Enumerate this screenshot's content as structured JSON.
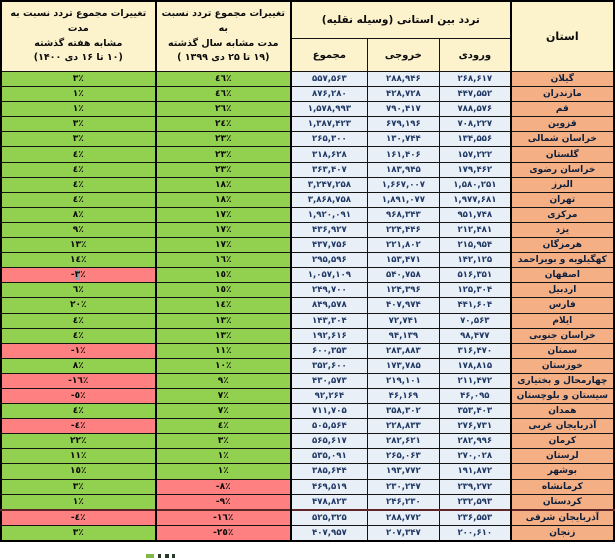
{
  "table": {
    "headers": {
      "province": "استان",
      "traffic_group": "تردد بین استانی (وسیله نقلیه)",
      "incoming": "ورودی",
      "outgoing": "خروجی",
      "total": "مجموع",
      "year_change": "تغییرات مجموع تردد نسبت به\nمدت مشابه سال گذشته\n(۱۹ تا ۲۵ دی ۱۳۹۹ )",
      "week_change": "تغییرات مجموع تردد نسبت به مدت\nمشابه هفته گذشته\n(۱۰ تا ۱۶ دی ۱۴۰۰)"
    },
    "colors": {
      "header_bg": "#FCF2CC",
      "province_bg": "#F4B084",
      "value_bg": "#E9EFF7",
      "positive_bg": "#92D050",
      "negative_bg": "#FF8080",
      "heavy_row_border": "#5E2626"
    },
    "rows": [
      {
        "province": "گیلان",
        "incoming": "۲۶۸,۶۱۷",
        "outgoing": "۲۸۸,۹۴۶",
        "total": "۵۵۷,۵۶۳",
        "year": "٤٦٪",
        "week": "٣٪",
        "year_neg": false,
        "week_neg": false
      },
      {
        "province": "مازندران",
        "incoming": "۴۴۷,۵۵۲",
        "outgoing": "۴۲۸,۷۲۸",
        "total": "۸۷۶,۲۸۰",
        "year": "٤٦٪",
        "week": "١٪",
        "year_neg": false,
        "week_neg": false
      },
      {
        "province": "قم",
        "incoming": "۷۸۸,۵۷۶",
        "outgoing": "۷۹۰,۴۱۷",
        "total": "۱,۵۷۸,۹۹۳",
        "year": "٢٦٪",
        "week": "١٪",
        "year_neg": false,
        "week_neg": false
      },
      {
        "province": "قزوین",
        "incoming": "۷۰۸,۲۲۷",
        "outgoing": "۶۷۹,۱۹۶",
        "total": "۱,۳۸۷,۴۲۳",
        "year": "٢٤٪",
        "week": "٣٪",
        "year_neg": false,
        "week_neg": false
      },
      {
        "province": "خراسان شمالی",
        "incoming": "۱۳۴,۵۵۶",
        "outgoing": "۱۳۰,۷۴۴",
        "total": "۲۶۵,۳۰۰",
        "year": "٢٣٪",
        "week": "٣٪",
        "year_neg": false,
        "week_neg": false
      },
      {
        "province": "گلستان",
        "incoming": "۱۵۷,۲۲۲",
        "outgoing": "۱۶۱,۴۰۶",
        "total": "۳۱۸,۶۲۸",
        "year": "٢٣٪",
        "week": "٤٪",
        "year_neg": false,
        "week_neg": false
      },
      {
        "province": "خراسان رضوی",
        "incoming": "۱۷۹,۴۶۲",
        "outgoing": "۱۸۳,۹۴۵",
        "total": "۳۶۳,۴۰۷",
        "year": "٢٣٪",
        "week": "٤٪",
        "year_neg": false,
        "week_neg": false
      },
      {
        "province": "البرز",
        "incoming": "۱,۵۸۰,۲۵۱",
        "outgoing": "۱,۶۶۷,۰۰۷",
        "total": "۳,۲۴۷,۲۵۸",
        "year": "١٨٪",
        "week": "٤٪",
        "year_neg": false,
        "week_neg": false
      },
      {
        "province": "تهران",
        "incoming": "۱,۹۷۷,۶۸۱",
        "outgoing": "۱,۸۹۱,۰۷۷",
        "total": "۳,۸۶۸,۷۵۸",
        "year": "١٨٪",
        "week": "٤٪",
        "year_neg": false,
        "week_neg": false
      },
      {
        "province": "مرکزی",
        "incoming": "۹۵۱,۷۴۸",
        "outgoing": "۹۶۸,۳۴۳",
        "total": "۱,۹۲۰,۰۹۱",
        "year": "١٧٪",
        "week": "٨٪",
        "year_neg": false,
        "week_neg": false
      },
      {
        "province": "یزد",
        "incoming": "۲۱۲,۴۸۱",
        "outgoing": "۲۲۴,۴۴۶",
        "total": "۴۳۶,۹۲۷",
        "year": "١٧٪",
        "week": "٩٪",
        "year_neg": false,
        "week_neg": false
      },
      {
        "province": "هرمزگان",
        "incoming": "۲۱۵,۹۵۴",
        "outgoing": "۲۲۱,۸۰۲",
        "total": "۴۳۷,۷۵۶",
        "year": "١٧٪",
        "week": "١٣٪",
        "year_neg": false,
        "week_neg": false
      },
      {
        "province": "کهگیلویه و بویراحمد",
        "incoming": "۱۴۲,۱۲۵",
        "outgoing": "۱۵۳,۴۷۱",
        "total": "۲۹۵,۵۹۶",
        "year": "١٦٪",
        "week": "١٤٪",
        "year_neg": false,
        "week_neg": false
      },
      {
        "province": "اصفهان",
        "incoming": "۵۱۶,۳۵۱",
        "outgoing": "۵۴۰,۷۵۸",
        "total": "۱,۰۵۷,۱۰۹",
        "year": "١٥٪",
        "week": "-٣٪",
        "year_neg": false,
        "week_neg": true,
        "week_hl": true
      },
      {
        "province": "اردبیل",
        "incoming": "۱۲۵,۳۰۴",
        "outgoing": "۱۲۴,۳۹۶",
        "total": "۲۴۹,۷۰۰",
        "year": "١٥٪",
        "week": "٦٪",
        "year_neg": false,
        "week_neg": false
      },
      {
        "province": "فارس",
        "incoming": "۴۴۱,۶۰۴",
        "outgoing": "۴۰۷,۹۷۴",
        "total": "۸۴۹,۵۷۸",
        "year": "١٤٪",
        "week": "٢٠٪",
        "year_neg": false,
        "week_neg": false
      },
      {
        "province": "ایلام",
        "incoming": "۷۰,۵۶۳",
        "outgoing": "۷۲,۷۴۱",
        "total": "۱۴۳,۳۰۴",
        "year": "١٣٪",
        "week": "٤٪",
        "year_neg": false,
        "week_neg": false
      },
      {
        "province": "خراسان جنوبی",
        "incoming": "۹۸,۴۷۷",
        "outgoing": "۹۴,۱۳۹",
        "total": "۱۹۲,۶۱۶",
        "year": "١٣٪",
        "week": "٤٪",
        "year_neg": false,
        "week_neg": false
      },
      {
        "province": "سمنان",
        "incoming": "۳۱۶,۴۷۰",
        "outgoing": "۲۸۳,۸۸۳",
        "total": "۶۰۰,۳۵۳",
        "year": "١١٪",
        "week": "-١٪",
        "year_neg": false,
        "week_neg": true
      },
      {
        "province": "خوزستان",
        "incoming": "۱۷۸,۸۱۵",
        "outgoing": "۱۷۳,۷۸۵",
        "total": "۳۵۲,۶۰۰",
        "year": "١٠٪",
        "week": "٨٪",
        "year_neg": false,
        "week_neg": false
      },
      {
        "province": "چهارمحال و بختیاری",
        "incoming": "۲۱۱,۴۷۲",
        "outgoing": "۲۱۹,۱۰۱",
        "total": "۴۳۰,۵۷۳",
        "year": "٩٪",
        "week": "-١٦٪",
        "year_neg": false,
        "week_neg": true
      },
      {
        "province": "سیستان و بلوچستان",
        "incoming": "۴۶,۰۹۵",
        "outgoing": "۴۶,۱۶۹",
        "total": "۹۲,۲۶۴",
        "year": "٧٪",
        "week": "-٥٪",
        "year_neg": false,
        "week_neg": true
      },
      {
        "province": "همدان",
        "incoming": "۳۵۳,۴۰۳",
        "outgoing": "۳۵۸,۳۰۲",
        "total": "۷۱۱,۷۰۵",
        "year": "٧٪",
        "week": "٤٪",
        "year_neg": false,
        "week_neg": false
      },
      {
        "province": "آذربایجان غربی",
        "incoming": "۲۷۶,۷۳۱",
        "outgoing": "۲۲۸,۸۳۳",
        "total": "۵۰۵,۵۶۴",
        "year": "٤٪",
        "week": "-٤٪",
        "year_neg": false,
        "week_neg": true
      },
      {
        "province": "کرمان",
        "incoming": "۲۸۲,۹۹۶",
        "outgoing": "۲۸۲,۶۲۱",
        "total": "۵۶۵,۶۱۷",
        "year": "٣٪",
        "week": "٢٢٪",
        "year_neg": false,
        "week_neg": false
      },
      {
        "province": "لرستان",
        "incoming": "۲۷۰,۰۲۸",
        "outgoing": "۲۶۵,۰۶۳",
        "total": "۵۳۵,۰۹۱",
        "year": "١٪",
        "week": "١١٪",
        "year_neg": false,
        "week_neg": false
      },
      {
        "province": "بوشهر",
        "incoming": "۱۹۱,۸۷۲",
        "outgoing": "۱۹۳,۷۷۲",
        "total": "۳۸۵,۶۴۴",
        "year": "١٪",
        "week": "١٥٪",
        "year_neg": false,
        "week_neg": false
      },
      {
        "province": "کرمانشاه",
        "incoming": "۲۳۹,۲۷۲",
        "outgoing": "۲۳۰,۲۴۷",
        "total": "۴۶۹,۵۱۹",
        "year": "-٨٪",
        "week": "٣٪",
        "year_neg": true,
        "week_neg": false
      },
      {
        "province": "کردستان",
        "incoming": "۲۳۲,۵۹۳",
        "outgoing": "۲۴۶,۲۳۰",
        "total": "۴۷۸,۸۲۳",
        "year": "-٩٪",
        "week": "١٪",
        "year_neg": true,
        "week_neg": false
      },
      {
        "province": "آذربایجان شرقی",
        "incoming": "۲۳۶,۵۵۳",
        "outgoing": "۲۸۸,۷۷۲",
        "total": "۵۲۵,۳۲۵",
        "year": "-١٦٪",
        "week": "-٤٪",
        "year_neg": true,
        "week_neg": true,
        "heavy_top": true
      },
      {
        "province": "زنجان",
        "incoming": "۲۰۰,۶۱۰",
        "outgoing": "۲۰۷,۳۴۷",
        "total": "۴۰۷,۹۵۷",
        "year": "-٢٥٪",
        "week": "٣٪",
        "year_neg": true,
        "week_neg": false
      }
    ]
  }
}
